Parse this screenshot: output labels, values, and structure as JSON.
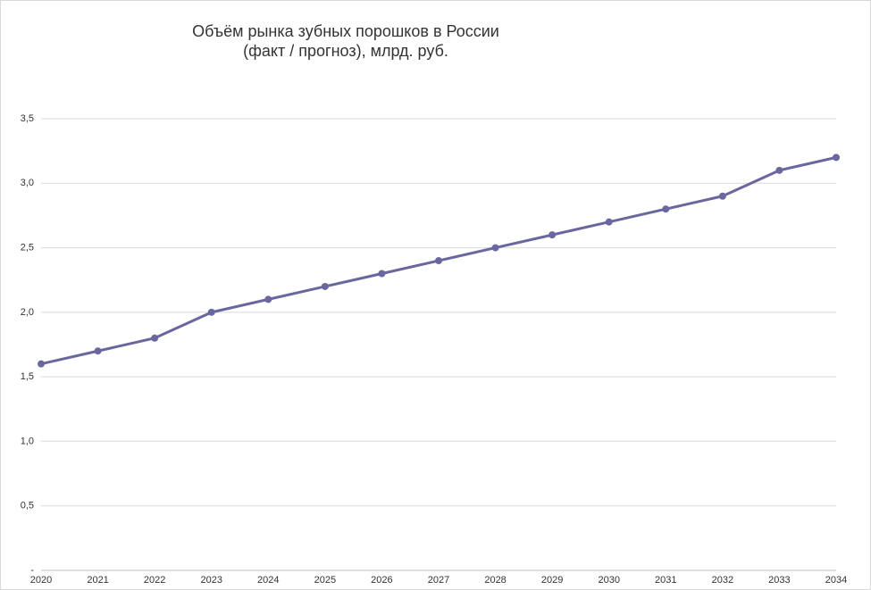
{
  "chart_data": {
    "type": "line",
    "title": "Объём рынка зубных порошков в России",
    "subtitle": "(факт / прогноз), млрд. руб.",
    "categories": [
      "2020",
      "2021",
      "2022",
      "2023",
      "2024",
      "2025",
      "2026",
      "2027",
      "2028",
      "2029",
      "2030",
      "2031",
      "2032",
      "2033",
      "2034"
    ],
    "series": [
      {
        "name": "Объём рынка",
        "color": "#6a679f",
        "values": [
          1.6,
          1.7,
          1.8,
          2.0,
          2.1,
          2.2,
          2.3,
          2.4,
          2.5,
          2.6,
          2.7,
          2.8,
          2.9,
          3.1,
          3.2
        ]
      }
    ],
    "ylim": [
      0,
      3.5
    ],
    "yticks": [
      {
        "value": 0,
        "label": "-"
      },
      {
        "value": 0.5,
        "label": "0,5"
      },
      {
        "value": 1,
        "label": "1,0"
      },
      {
        "value": 1.5,
        "label": "1,5"
      },
      {
        "value": 2,
        "label": "2,0"
      },
      {
        "value": 2.5,
        "label": "2,5"
      },
      {
        "value": 3,
        "label": "3,0"
      },
      {
        "value": 3.5,
        "label": "3,5"
      }
    ],
    "grid": true
  }
}
